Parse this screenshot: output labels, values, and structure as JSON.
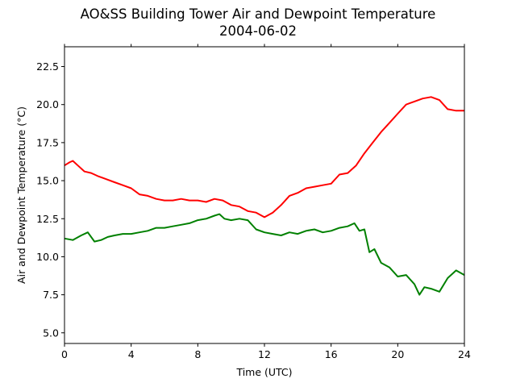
{
  "chart_data": {
    "type": "line",
    "title": "AO&SS Building Tower Air and Dewpoint Temperature",
    "subtitle": "2004-06-02",
    "xlabel": "Time (UTC)",
    "ylabel": "Air and Dewpoint Temperature (°C)",
    "xlim": [
      0,
      24
    ],
    "ylim": [
      4.3,
      23.8
    ],
    "xticks": [
      0,
      4,
      8,
      12,
      16,
      20,
      24
    ],
    "yticks": [
      5.0,
      7.5,
      10.0,
      12.5,
      15.0,
      17.5,
      20.0,
      22.5
    ],
    "grid": false,
    "legend": false,
    "series": [
      {
        "color": "#ff0000",
        "x": [
          0,
          0.3,
          0.5,
          0.8,
          1.2,
          1.6,
          2.0,
          2.5,
          3.0,
          3.5,
          4.0,
          4.5,
          5.0,
          5.5,
          6.0,
          6.5,
          7.0,
          7.5,
          8.0,
          8.5,
          9.0,
          9.5,
          10.0,
          10.5,
          11.0,
          11.5,
          12.0,
          12.5,
          13.0,
          13.5,
          14.0,
          14.5,
          15.0,
          15.5,
          16.0,
          16.5,
          17.0,
          17.5,
          18.0,
          18.5,
          19.0,
          19.5,
          20.0,
          20.5,
          21.0,
          21.5,
          22.0,
          22.5,
          23.0,
          23.5,
          24.0
        ],
        "values": [
          16.0,
          16.2,
          16.3,
          16.0,
          15.6,
          15.5,
          15.3,
          15.1,
          14.9,
          14.7,
          14.5,
          14.1,
          14.0,
          13.8,
          13.7,
          13.7,
          13.8,
          13.7,
          13.7,
          13.6,
          13.8,
          13.7,
          13.4,
          13.3,
          13.0,
          12.9,
          12.6,
          12.9,
          13.4,
          14.0,
          14.2,
          14.5,
          14.6,
          14.7,
          14.8,
          15.4,
          15.5,
          16.0,
          16.8,
          17.5,
          18.2,
          18.8,
          19.4,
          20.0,
          20.2,
          20.4,
          20.5,
          20.3,
          19.7,
          19.6,
          19.6
        ]
      },
      {
        "color": "#008000",
        "x": [
          0,
          0.5,
          1.0,
          1.4,
          1.8,
          2.2,
          2.6,
          3.0,
          3.5,
          4.0,
          4.5,
          5.0,
          5.5,
          6.0,
          6.5,
          7.0,
          7.5,
          8.0,
          8.5,
          9.0,
          9.3,
          9.6,
          10.0,
          10.5,
          11.0,
          11.5,
          12.0,
          12.5,
          13.0,
          13.5,
          14.0,
          14.5,
          15.0,
          15.5,
          16.0,
          16.5,
          17.0,
          17.4,
          17.7,
          18.0,
          18.3,
          18.6,
          19.0,
          19.5,
          20.0,
          20.5,
          21.0,
          21.3,
          21.6,
          22.0,
          22.5,
          23.0,
          23.5,
          24.0
        ],
        "values": [
          11.2,
          11.1,
          11.4,
          11.6,
          11.0,
          11.1,
          11.3,
          11.4,
          11.5,
          11.5,
          11.6,
          11.7,
          11.9,
          11.9,
          12.0,
          12.1,
          12.2,
          12.4,
          12.5,
          12.7,
          12.8,
          12.5,
          12.4,
          12.5,
          12.4,
          11.8,
          11.6,
          11.5,
          11.4,
          11.6,
          11.5,
          11.7,
          11.8,
          11.6,
          11.7,
          11.9,
          12.0,
          12.2,
          11.7,
          11.8,
          10.3,
          10.5,
          9.6,
          9.3,
          8.7,
          8.8,
          8.2,
          7.5,
          8.0,
          7.9,
          7.7,
          8.6,
          9.1,
          8.8
        ]
      }
    ]
  }
}
